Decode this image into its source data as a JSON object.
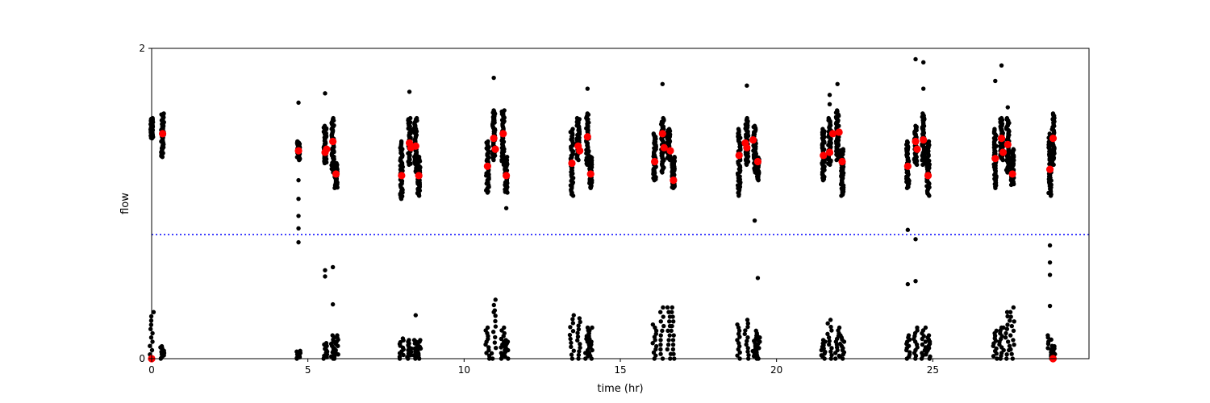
{
  "chart_data": {
    "type": "scatter",
    "title": "",
    "xlabel": "time (hr)",
    "ylabel": "flow",
    "xlim": [
      0,
      30
    ],
    "ylim": [
      0,
      2
    ],
    "xticks": [
      0,
      5,
      10,
      15,
      20,
      25
    ],
    "yticks": [
      0,
      2
    ],
    "grid": false,
    "legend": "none",
    "threshold": {
      "y": 0.8,
      "style": "dotted",
      "color": "#0000ff"
    },
    "colors": {
      "raw": "#000000",
      "summary": "#ff0000",
      "threshold": "#0000ff"
    },
    "series": [
      {
        "kind": "raw",
        "marker": "dot",
        "clusters": [
          {
            "x": 0.0,
            "high": [
              1.55,
              1.42
            ],
            "low_max": 0.3
          },
          {
            "x": 0.35,
            "high": [
              1.58,
              1.3
            ],
            "low_max": 0.08
          },
          {
            "x": 4.7,
            "high": [
              1.4,
              1.28
            ],
            "low_max": 0.05,
            "stragglers": [
              1.65,
              1.15,
              1.03,
              0.92,
              0.84,
              0.75
            ]
          },
          {
            "x": 5.55,
            "high": [
              1.5,
              1.26
            ],
            "low_max": 0.1,
            "stragglers": [
              1.71,
              0.57,
              0.53
            ]
          },
          {
            "x": 5.8,
            "high": [
              1.55,
              1.2
            ],
            "low_max": 0.15,
            "stragglers": [
              0.59,
              0.35
            ]
          },
          {
            "x": 5.9,
            "high": [
              1.26,
              1.1
            ],
            "low_max": 0.15
          },
          {
            "x": 8.0,
            "high": [
              1.4,
              1.03
            ],
            "low_max": 0.13
          },
          {
            "x": 8.25,
            "high": [
              1.55,
              1.25
            ],
            "low_max": 0.12,
            "stragglers": [
              1.72
            ]
          },
          {
            "x": 8.45,
            "high": [
              1.55,
              1.2
            ],
            "low_max": 0.12,
            "stragglers": [
              0.28
            ]
          },
          {
            "x": 8.55,
            "high": [
              1.3,
              1.05
            ],
            "low_max": 0.12
          },
          {
            "x": 10.75,
            "high": [
              1.4,
              1.07
            ],
            "low_max": 0.2
          },
          {
            "x": 10.95,
            "high": [
              1.6,
              1.28
            ],
            "low_max": 0.38,
            "stragglers": [
              1.81,
              0.3
            ]
          },
          {
            "x": 11.25,
            "high": [
              1.6,
              1.25
            ],
            "low_max": 0.2
          },
          {
            "x": 11.35,
            "high": [
              1.3,
              1.07
            ],
            "low_max": 0.12,
            "stragglers": [
              0.97
            ]
          },
          {
            "x": 13.45,
            "high": [
              1.48,
              1.05
            ],
            "low_max": 0.28
          },
          {
            "x": 13.65,
            "high": [
              1.55,
              1.28
            ],
            "low_max": 0.26
          },
          {
            "x": 13.95,
            "high": [
              1.58,
              1.25
            ],
            "low_max": 0.2,
            "stragglers": [
              1.74
            ]
          },
          {
            "x": 14.05,
            "high": [
              1.3,
              1.1
            ],
            "low_max": 0.2
          },
          {
            "x": 16.1,
            "high": [
              1.45,
              1.15
            ],
            "low_max": 0.22
          },
          {
            "x": 16.35,
            "high": [
              1.55,
              1.2
            ],
            "low_max": 0.33,
            "stragglers": [
              1.77
            ]
          },
          {
            "x": 16.55,
            "high": [
              1.48,
              1.28
            ],
            "low_max": 0.33
          },
          {
            "x": 16.7,
            "high": [
              1.3,
              1.1
            ],
            "low_max": 0.33
          },
          {
            "x": 18.8,
            "high": [
              1.48,
              1.05
            ],
            "low_max": 0.22
          },
          {
            "x": 19.05,
            "high": [
              1.55,
              1.25
            ],
            "low_max": 0.25,
            "stragglers": [
              1.76
            ]
          },
          {
            "x": 19.3,
            "high": [
              1.5,
              1.2
            ],
            "low_max": 0.18,
            "stragglers": [
              0.89
            ]
          },
          {
            "x": 19.4,
            "high": [
              1.3,
              1.15
            ],
            "low_max": 0.15,
            "stragglers": [
              0.52
            ]
          },
          {
            "x": 21.5,
            "high": [
              1.48,
              1.15
            ],
            "low_max": 0.12
          },
          {
            "x": 21.7,
            "high": [
              1.55,
              1.25
            ],
            "low_max": 0.25,
            "stragglers": [
              1.7,
              1.64
            ]
          },
          {
            "x": 21.95,
            "high": [
              1.6,
              1.28
            ],
            "low_max": 0.2,
            "stragglers": [
              1.77
            ]
          },
          {
            "x": 22.1,
            "high": [
              1.35,
              1.05
            ],
            "low_max": 0.15
          },
          {
            "x": 24.2,
            "high": [
              1.4,
              1.1
            ],
            "low_max": 0.15,
            "stragglers": [
              0.83,
              0.48
            ]
          },
          {
            "x": 24.45,
            "high": [
              1.5,
              1.25
            ],
            "low_max": 0.2,
            "stragglers": [
              1.93,
              0.5,
              0.77
            ]
          },
          {
            "x": 24.7,
            "high": [
              1.58,
              1.25
            ],
            "low_max": 0.2,
            "stragglers": [
              1.91,
              1.74
            ]
          },
          {
            "x": 24.85,
            "high": [
              1.4,
              1.05
            ],
            "low_max": 0.15
          },
          {
            "x": 27.0,
            "high": [
              1.48,
              1.1
            ],
            "low_max": 0.18,
            "stragglers": [
              1.79
            ]
          },
          {
            "x": 27.2,
            "high": [
              1.55,
              1.28
            ],
            "low_max": 0.2,
            "stragglers": [
              1.89,
              0.2
            ]
          },
          {
            "x": 27.4,
            "high": [
              1.55,
              1.2
            ],
            "low_max": 0.3,
            "stragglers": [
              1.62
            ]
          },
          {
            "x": 27.55,
            "high": [
              1.35,
              1.12
            ],
            "low_max": 0.33
          },
          {
            "x": 28.75,
            "high": [
              1.45,
              1.05
            ],
            "low_max": 0.15,
            "stragglers": [
              0.73,
              0.62,
              0.54,
              0.34
            ]
          },
          {
            "x": 28.85,
            "high": [
              1.58,
              1.25
            ],
            "low_max": 0.08
          }
        ]
      },
      {
        "kind": "summary",
        "marker": "large-dot",
        "x": [
          0.0,
          0.35,
          4.7,
          5.55,
          5.6,
          5.8,
          5.9,
          8.0,
          8.25,
          8.3,
          8.45,
          8.55,
          10.75,
          10.95,
          11.0,
          11.25,
          11.35,
          13.45,
          13.65,
          13.7,
          13.95,
          14.05,
          16.1,
          16.35,
          16.4,
          16.6,
          16.7,
          18.8,
          19.0,
          19.05,
          19.25,
          19.4,
          21.5,
          21.7,
          21.8,
          22.0,
          22.1,
          24.2,
          24.45,
          24.5,
          24.7,
          24.85,
          27.0,
          27.2,
          27.25,
          27.4,
          27.55,
          28.75,
          28.85,
          28.85
        ],
        "y": [
          0.0,
          1.45,
          1.34,
          1.33,
          1.35,
          1.4,
          1.19,
          1.18,
          1.39,
          1.36,
          1.37,
          1.18,
          1.24,
          1.42,
          1.35,
          1.45,
          1.18,
          1.26,
          1.37,
          1.34,
          1.43,
          1.19,
          1.27,
          1.45,
          1.36,
          1.34,
          1.15,
          1.31,
          1.39,
          1.36,
          1.41,
          1.27,
          1.31,
          1.33,
          1.45,
          1.46,
          1.27,
          1.24,
          1.4,
          1.35,
          1.41,
          1.18,
          1.29,
          1.42,
          1.33,
          1.38,
          1.19,
          1.22,
          1.42,
          0.0
        ]
      }
    ]
  }
}
